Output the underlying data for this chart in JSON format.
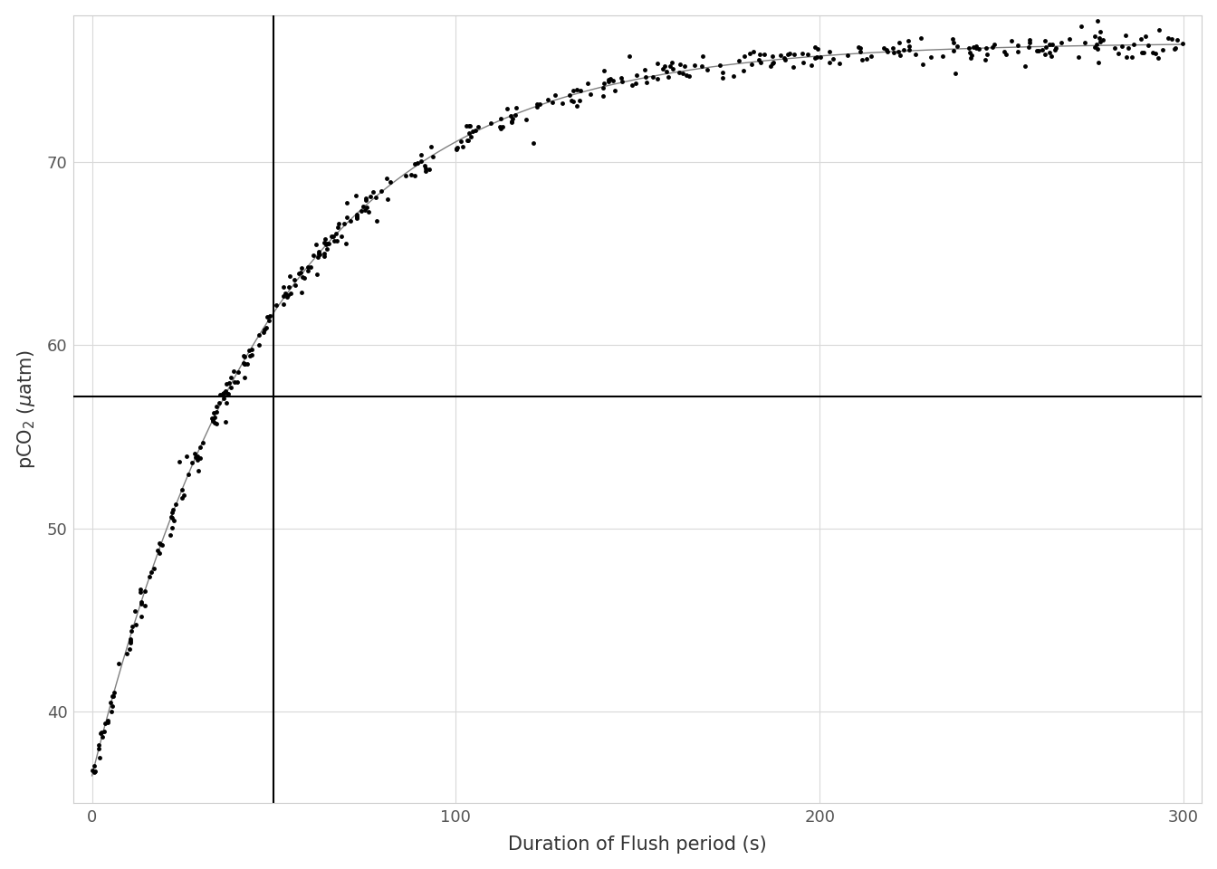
{
  "title": "",
  "xlabel": "Duration of Flush period (s)",
  "ylabel": "pCO₂ (μatm)",
  "xlim": [
    -5,
    305
  ],
  "ylim": [
    35.0,
    78.0
  ],
  "xticks": [
    0,
    100,
    200,
    300
  ],
  "yticks": [
    40,
    50,
    60,
    70
  ],
  "tau": 50.0,
  "pco2_start": 36.5,
  "pco2_final": 76.5,
  "hline_y": 57.17,
  "fit_A": 76.5,
  "fit_B": 40.0,
  "fit_tau": 50.0,
  "noise_scale": 0.35,
  "data_color": "#000000",
  "fit_color": "#808080",
  "line_color": "#000000",
  "bg_color": "#ffffff",
  "grid_color": "#d9d9d9",
  "axis_color": "#333333",
  "label_color": "#333333",
  "tick_color": "#555555",
  "label_fontsize": 15,
  "tick_fontsize": 13,
  "dot_size": 3.5,
  "n_dense_early": 180,
  "n_dense_late": 240
}
